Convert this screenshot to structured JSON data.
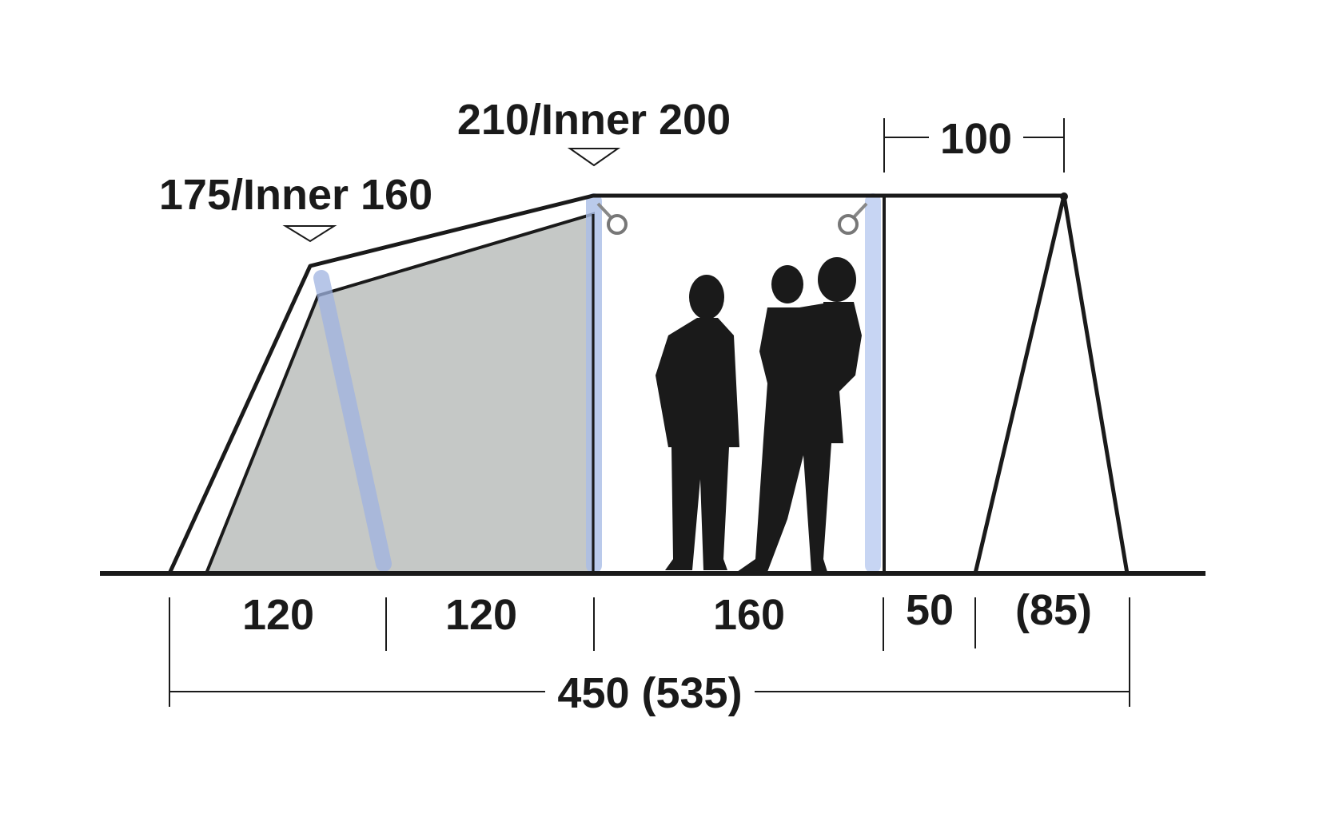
{
  "diagram": {
    "heights": {
      "front_peak": "175/Inner 160",
      "main_peak": "210/Inner 200"
    },
    "canopy_width": "100",
    "segments": [
      "120",
      "120",
      "160",
      "50",
      "(85)"
    ],
    "total_length": "450 (535)",
    "colors": {
      "outline": "#1a1a1a",
      "inner_tent": "#c5c8c6",
      "air_beam": "#a9bde6"
    }
  }
}
